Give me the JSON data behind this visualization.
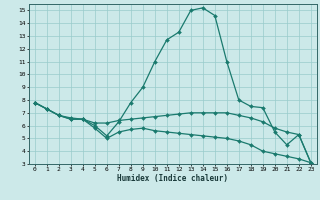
{
  "xlabel": "Humidex (Indice chaleur)",
  "xlim": [
    -0.5,
    23.5
  ],
  "ylim": [
    3,
    15.5
  ],
  "yticks": [
    3,
    4,
    5,
    6,
    7,
    8,
    9,
    10,
    11,
    12,
    13,
    14,
    15
  ],
  "xticks": [
    0,
    1,
    2,
    3,
    4,
    5,
    6,
    7,
    8,
    9,
    10,
    11,
    12,
    13,
    14,
    15,
    16,
    17,
    18,
    19,
    20,
    21,
    22,
    23
  ],
  "bg_color": "#cce9e9",
  "line_color": "#1a7a6e",
  "grid_color": "#99cccc",
  "line1_x": [
    0,
    1,
    2,
    3,
    4,
    5,
    6,
    7,
    8,
    9,
    10,
    11,
    12,
    13,
    14,
    15,
    16,
    17,
    18,
    19,
    20,
    21,
    22,
    23
  ],
  "line1_y": [
    7.8,
    7.3,
    6.8,
    6.5,
    6.5,
    6.0,
    5.2,
    6.3,
    7.8,
    9.0,
    11.0,
    12.7,
    13.3,
    15.0,
    15.2,
    14.6,
    11.0,
    8.0,
    7.5,
    7.4,
    5.5,
    4.5,
    5.3,
    3.1
  ],
  "line2_x": [
    0,
    1,
    2,
    3,
    4,
    5,
    6,
    7,
    8,
    9,
    10,
    11,
    12,
    13,
    14,
    15,
    16,
    17,
    18,
    19,
    20,
    21,
    22,
    23
  ],
  "line2_y": [
    7.8,
    7.3,
    6.8,
    6.6,
    6.5,
    6.2,
    6.2,
    6.4,
    6.5,
    6.6,
    6.7,
    6.8,
    6.9,
    7.0,
    7.0,
    7.0,
    7.0,
    6.8,
    6.6,
    6.3,
    5.8,
    5.5,
    5.3,
    3.1
  ],
  "line3_x": [
    0,
    1,
    2,
    3,
    4,
    5,
    6,
    7,
    8,
    9,
    10,
    11,
    12,
    13,
    14,
    15,
    16,
    17,
    18,
    19,
    20,
    21,
    22,
    23
  ],
  "line3_y": [
    7.8,
    7.3,
    6.8,
    6.5,
    6.5,
    5.8,
    5.0,
    5.5,
    5.7,
    5.8,
    5.6,
    5.5,
    5.4,
    5.3,
    5.2,
    5.1,
    5.0,
    4.8,
    4.5,
    4.0,
    3.8,
    3.6,
    3.4,
    3.1
  ]
}
